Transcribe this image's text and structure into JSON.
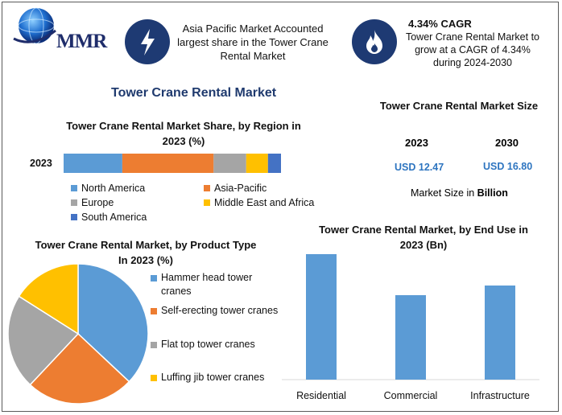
{
  "logo": {
    "text": "MMR"
  },
  "highlights": [
    {
      "icon": "lightning-icon",
      "text": "Asia Pacific Market Accounted largest share in the Tower Crane Rental Market"
    },
    {
      "icon": "flame-icon",
      "title": "4.34% CAGR",
      "text": "Tower Crane Rental Market to grow at a CAGR of 4.34% during 2024-2030"
    }
  ],
  "main_title": "Tower Crane Rental Market",
  "colors": {
    "north_america": "#5b9bd5",
    "asia_pacific": "#ed7d31",
    "europe": "#a5a5a5",
    "mea": "#ffc000",
    "south_america": "#4472c4",
    "bar": "#5b9bd5",
    "title_blue": "#1f3a6e"
  },
  "market_size": {
    "title": "Tower Crane Rental Market Size",
    "years": [
      "2023",
      "2030"
    ],
    "values": [
      "USD 12.47",
      "USD 16.80"
    ],
    "note_prefix": "Market Size in ",
    "note_unit": "Billion"
  },
  "chart_data": [
    {
      "type": "bar",
      "orientation": "horizontal-stacked",
      "title": "Tower Crane Rental Market Share, by Region in 2023 (%)",
      "categories": [
        "2023"
      ],
      "series": [
        {
          "name": "North America",
          "values": [
            27
          ]
        },
        {
          "name": "Asia-Pacific",
          "values": [
            42
          ]
        },
        {
          "name": "Europe",
          "values": [
            15
          ]
        },
        {
          "name": "Middle East and Africa",
          "values": [
            10
          ]
        },
        {
          "name": "South America",
          "values": [
            6
          ]
        }
      ],
      "legend": "bottom",
      "grid": false
    },
    {
      "type": "pie",
      "title": "Tower Crane Rental Market, by Product Type In 2023 (%)",
      "labels": [
        "Hammer head tower cranes",
        "Self-erecting tower cranes",
        "Flat top tower cranes",
        "Luffing jib tower cranes"
      ],
      "values": [
        37,
        25,
        22,
        16
      ],
      "legend": "right"
    },
    {
      "type": "bar",
      "title": "Tower Crane Rental Market, by End Use in 2023 (Bn)",
      "categories": [
        "Residential",
        "Commercial",
        "Infrastructure"
      ],
      "values": [
        5.2,
        3.5,
        3.9
      ],
      "ylim": [
        0,
        5.8
      ],
      "grid": false
    }
  ]
}
